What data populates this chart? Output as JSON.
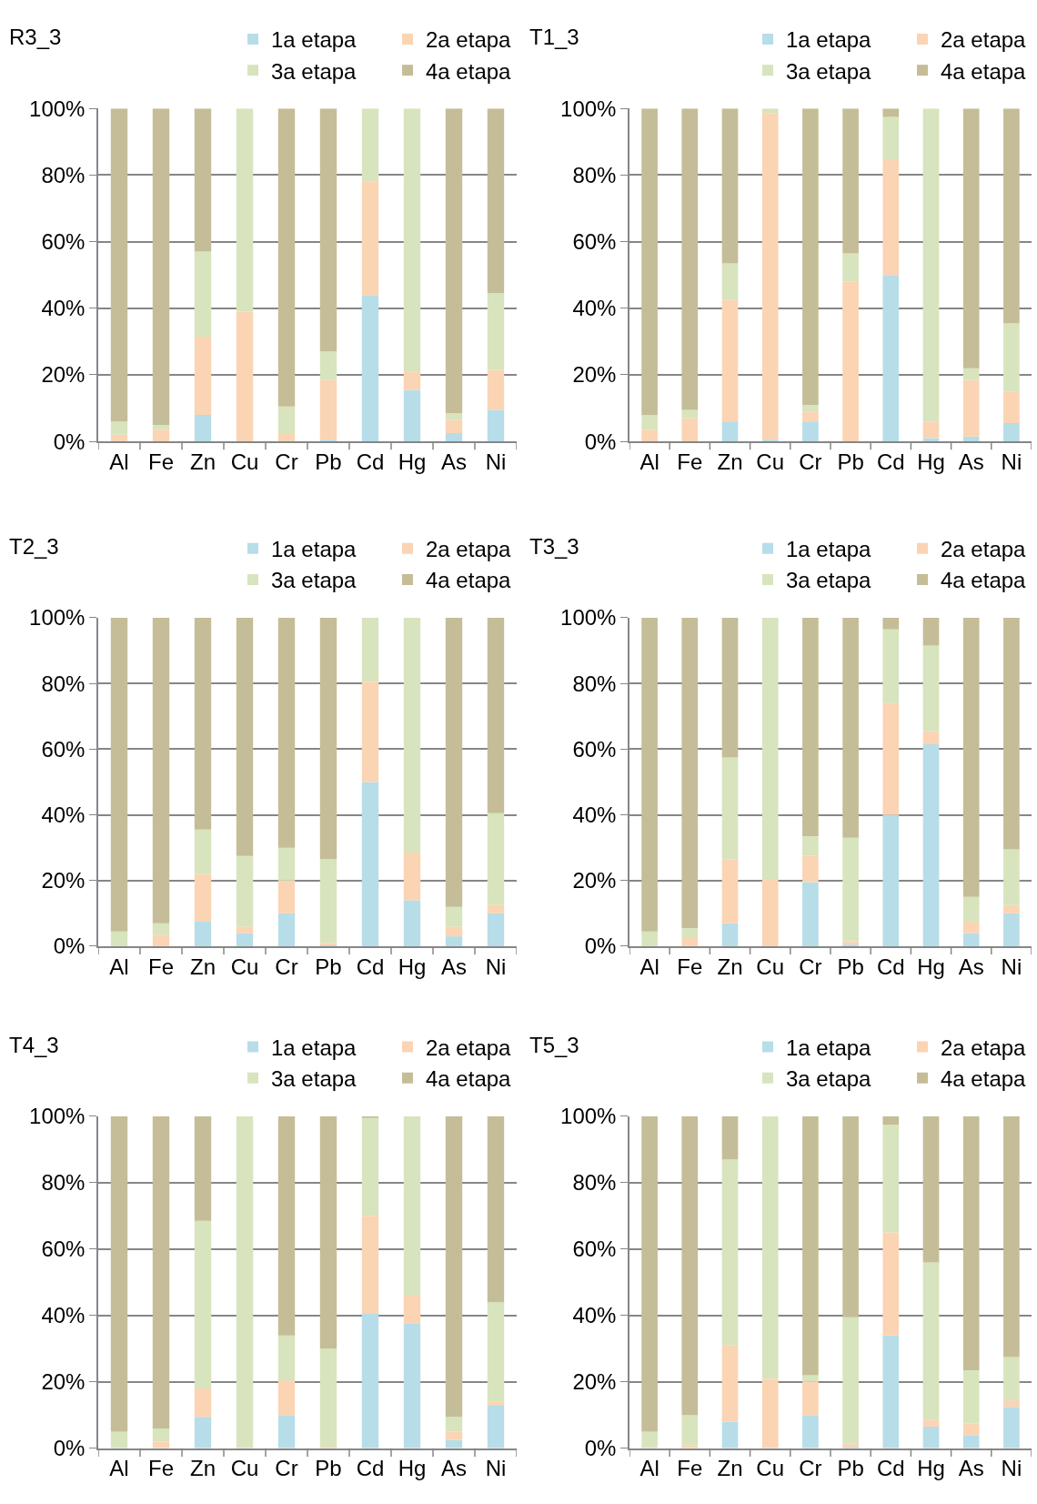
{
  "chart_data": [
    {
      "type": "bar",
      "stacked": true,
      "title": "R3_3",
      "categories": [
        "Al",
        "Fe",
        "Zn",
        "Cu",
        "Cr",
        "Pb",
        "Cd",
        "Hg",
        "As",
        "Ni"
      ],
      "ylim": [
        0,
        100
      ],
      "yticks": [
        {
          "value": 0,
          "label": "0%"
        },
        {
          "value": 20,
          "label": "20%"
        },
        {
          "value": 40,
          "label": "40%"
        },
        {
          "value": 60,
          "label": "60%"
        },
        {
          "value": 80,
          "label": "80%"
        },
        {
          "value": 100,
          "label": "100%"
        }
      ],
      "grid": "y",
      "legend": "top right",
      "series": [
        {
          "name": "1a etapa",
          "color": "#b7dde8",
          "values": [
            0,
            0,
            8,
            0,
            0,
            0.5,
            44,
            15.5,
            2.5,
            9.5
          ]
        },
        {
          "name": "2a etapa",
          "color": "#fbd4b4",
          "values": [
            2,
            3.5,
            23.5,
            39,
            2.5,
            18,
            34,
            5.5,
            4,
            12
          ]
        },
        {
          "name": "3a etapa",
          "color": "#d7e4bd",
          "values": [
            4,
            1.5,
            25.5,
            61,
            8,
            8.5,
            22,
            79,
            2,
            23
          ]
        },
        {
          "name": "4a etapa",
          "color": "#c4bd97",
          "values": [
            94,
            95,
            43,
            0,
            89.5,
            73,
            0,
            0,
            91.5,
            55.5
          ]
        }
      ]
    },
    {
      "type": "bar",
      "stacked": true,
      "title": "T1_3",
      "categories": [
        "Al",
        "Fe",
        "Zn",
        "Cu",
        "Cr",
        "Pb",
        "Cd",
        "Hg",
        "As",
        "Ni"
      ],
      "ylim": [
        0,
        100
      ],
      "yticks": [
        {
          "value": 0,
          "label": "0%"
        },
        {
          "value": 20,
          "label": "20%"
        },
        {
          "value": 40,
          "label": "40%"
        },
        {
          "value": 60,
          "label": "60%"
        },
        {
          "value": 80,
          "label": "80%"
        },
        {
          "value": 100,
          "label": "100%"
        }
      ],
      "grid": "y",
      "legend": "top right",
      "series": [
        {
          "name": "1a etapa",
          "color": "#b7dde8",
          "values": [
            0,
            0,
            6,
            0.5,
            6,
            0,
            50,
            1,
            1.5,
            5.5
          ]
        },
        {
          "name": "2a etapa",
          "color": "#fbd4b4",
          "values": [
            3.5,
            7,
            36.5,
            98,
            3,
            48,
            34.5,
            5,
            17,
            9.5
          ]
        },
        {
          "name": "3a etapa",
          "color": "#d7e4bd",
          "values": [
            4.5,
            2.5,
            11,
            1.5,
            2,
            8.5,
            13,
            94,
            3.5,
            20.5
          ]
        },
        {
          "name": "4a etapa",
          "color": "#c4bd97",
          "values": [
            92,
            90.5,
            46.5,
            0,
            89,
            43.5,
            2.5,
            0,
            78,
            64.5
          ]
        }
      ]
    },
    {
      "type": "bar",
      "stacked": true,
      "title": "T2_3",
      "categories": [
        "Al",
        "Fe",
        "Zn",
        "Cu",
        "Cr",
        "Pb",
        "Cd",
        "Hg",
        "As",
        "Ni"
      ],
      "ylim": [
        0,
        100
      ],
      "yticks": [
        {
          "value": 0,
          "label": "0%"
        },
        {
          "value": 20,
          "label": "20%"
        },
        {
          "value": 40,
          "label": "40%"
        },
        {
          "value": 60,
          "label": "60%"
        },
        {
          "value": 80,
          "label": "80%"
        },
        {
          "value": 100,
          "label": "100%"
        }
      ],
      "grid": "y",
      "legend": "top right",
      "series": [
        {
          "name": "1a etapa",
          "color": "#b7dde8",
          "values": [
            0,
            0,
            7.5,
            4,
            10,
            0.5,
            50,
            14,
            3,
            10
          ]
        },
        {
          "name": "2a etapa",
          "color": "#fbd4b4",
          "values": [
            0,
            3.5,
            14.5,
            2,
            10,
            0.5,
            30.5,
            14.5,
            3,
            2.5
          ]
        },
        {
          "name": "3a etapa",
          "color": "#d7e4bd",
          "values": [
            4.5,
            3.5,
            13.5,
            21.5,
            10,
            25.5,
            19.5,
            71.5,
            6,
            28
          ]
        },
        {
          "name": "4a etapa",
          "color": "#c4bd97",
          "values": [
            95.5,
            93,
            64.5,
            72.5,
            70,
            73.5,
            0,
            0,
            88,
            59.5
          ]
        }
      ]
    },
    {
      "type": "bar",
      "stacked": true,
      "title": "T3_3",
      "categories": [
        "Al",
        "Fe",
        "Zn",
        "Cu",
        "Cr",
        "Pb",
        "Cd",
        "Hg",
        "As",
        "Ni"
      ],
      "ylim": [
        0,
        100
      ],
      "yticks": [
        {
          "value": 0,
          "label": "0%"
        },
        {
          "value": 20,
          "label": "20%"
        },
        {
          "value": 40,
          "label": "40%"
        },
        {
          "value": 60,
          "label": "60%"
        },
        {
          "value": 80,
          "label": "80%"
        },
        {
          "value": 100,
          "label": "100%"
        }
      ],
      "grid": "y",
      "legend": "top right",
      "series": [
        {
          "name": "1a etapa",
          "color": "#b7dde8",
          "values": [
            0,
            0,
            7,
            0,
            19.5,
            0.5,
            40,
            61.5,
            4,
            10
          ]
        },
        {
          "name": "2a etapa",
          "color": "#fbd4b4",
          "values": [
            0,
            2.5,
            19.5,
            20.5,
            8,
            1,
            34,
            4,
            3.5,
            2.5
          ]
        },
        {
          "name": "3a etapa",
          "color": "#d7e4bd",
          "values": [
            4.5,
            3,
            31,
            79.5,
            6,
            31.5,
            22.5,
            26,
            7.5,
            17
          ]
        },
        {
          "name": "4a etapa",
          "color": "#c4bd97",
          "values": [
            95.5,
            94.5,
            42.5,
            0,
            66.5,
            67,
            3.5,
            8.5,
            85,
            70.5
          ]
        }
      ]
    },
    {
      "type": "bar",
      "stacked": true,
      "title": "T4_3",
      "categories": [
        "Al",
        "Fe",
        "Zn",
        "Cu",
        "Cr",
        "Pb",
        "Cd",
        "Hg",
        "As",
        "Ni"
      ],
      "ylim": [
        0,
        100
      ],
      "yticks": [
        {
          "value": 0,
          "label": "0%"
        },
        {
          "value": 20,
          "label": "20%"
        },
        {
          "value": 40,
          "label": "40%"
        },
        {
          "value": 60,
          "label": "60%"
        },
        {
          "value": 80,
          "label": "80%"
        },
        {
          "value": 100,
          "label": "100%"
        }
      ],
      "grid": "y",
      "legend": "top right",
      "series": [
        {
          "name": "1a etapa",
          "color": "#b7dde8",
          "values": [
            0,
            0,
            9.5,
            0,
            10,
            null,
            40.5,
            37.5,
            2.5,
            13
          ]
        },
        {
          "name": "2a etapa",
          "color": "#fbd4b4",
          "values": [
            0,
            2,
            8.5,
            0,
            10.5,
            0.5,
            29.5,
            8.5,
            2.5,
            1
          ]
        },
        {
          "name": "3a etapa",
          "color": "#d7e4bd",
          "values": [
            5,
            4,
            50.5,
            100,
            13.5,
            29.5,
            29.5,
            54,
            4.5,
            30
          ]
        },
        {
          "name": "4a etapa",
          "color": "#c4bd97",
          "values": [
            95,
            94,
            31.5,
            0,
            66,
            70,
            0.5,
            0,
            90.5,
            56
          ]
        }
      ]
    },
    {
      "type": "bar",
      "stacked": true,
      "title": "T5_3",
      "categories": [
        "Al",
        "Fe",
        "Zn",
        "Cu",
        "Cr",
        "Pb",
        "Cd",
        "Hg",
        "As",
        "Ni"
      ],
      "ylim": [
        0,
        100
      ],
      "yticks": [
        {
          "value": 0,
          "label": "0%"
        },
        {
          "value": 20,
          "label": "20%"
        },
        {
          "value": 40,
          "label": "40%"
        },
        {
          "value": 60,
          "label": "60%"
        },
        {
          "value": 80,
          "label": "80%"
        },
        {
          "value": 100,
          "label": "100%"
        }
      ],
      "grid": "y",
      "legend": "top right",
      "series": [
        {
          "name": "1a etapa",
          "color": "#b7dde8",
          "values": [
            0,
            0,
            8,
            0,
            10,
            0.5,
            34,
            6.5,
            4,
            12.5
          ]
        },
        {
          "name": "2a etapa",
          "color": "#fbd4b4",
          "values": [
            0,
            1,
            23,
            21,
            10,
            1,
            31,
            2,
            3.5,
            2
          ]
        },
        {
          "name": "3a etapa",
          "color": "#d7e4bd",
          "values": [
            5,
            9,
            56,
            79,
            2,
            38,
            32.5,
            47.5,
            16,
            13
          ]
        },
        {
          "name": "4a etapa",
          "color": "#c4bd97",
          "values": [
            95,
            90,
            13,
            0,
            78,
            60.5,
            2.5,
            44,
            76.5,
            72.5
          ]
        }
      ]
    }
  ]
}
